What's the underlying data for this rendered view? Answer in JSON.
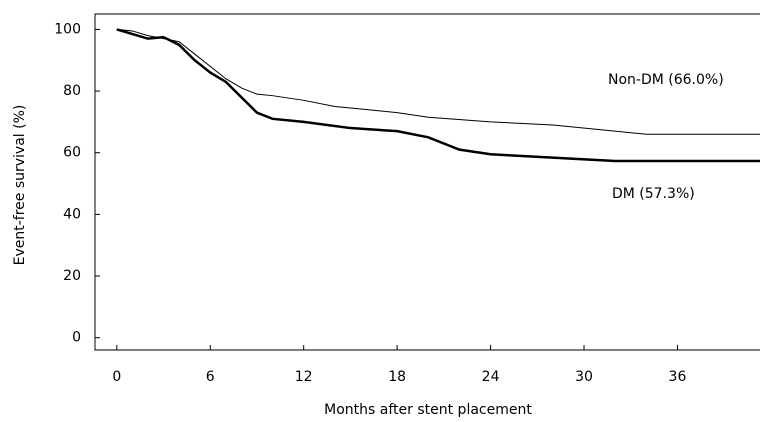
{
  "chart_data": {
    "type": "line",
    "x_label": "Months after stent placement",
    "y_label": "Event-free survival (%)",
    "xlim": [
      -1.4,
      41.3
    ],
    "ylim": [
      -4,
      105
    ],
    "xticks": [
      0,
      6,
      12,
      18,
      24,
      30,
      36
    ],
    "yticks": [
      0,
      20,
      40,
      60,
      80,
      100
    ],
    "series": [
      {
        "name": "Non-DM (66.0%)",
        "color": "#000000",
        "x": [
          0,
          1,
          2,
          3,
          4,
          5,
          6,
          7,
          8,
          9,
          10,
          12,
          14,
          16,
          18,
          20,
          24,
          28,
          34,
          41.3
        ],
        "values": [
          100,
          99.5,
          98,
          97,
          96,
          92,
          88,
          84,
          81,
          79,
          78.5,
          77,
          75,
          74,
          73,
          71.5,
          70,
          69,
          66,
          66
        ]
      },
      {
        "name": "DM (57.3%)",
        "color": "#000000",
        "x": [
          0,
          2,
          3,
          4,
          5,
          6,
          7,
          8,
          9,
          10,
          12,
          15,
          18,
          20,
          22,
          24,
          32,
          41.3
        ],
        "values": [
          100,
          97,
          97.5,
          95,
          90,
          86,
          83,
          78,
          73,
          71,
          70,
          68,
          67,
          65,
          61,
          59.5,
          57.3,
          57.3
        ]
      }
    ]
  }
}
